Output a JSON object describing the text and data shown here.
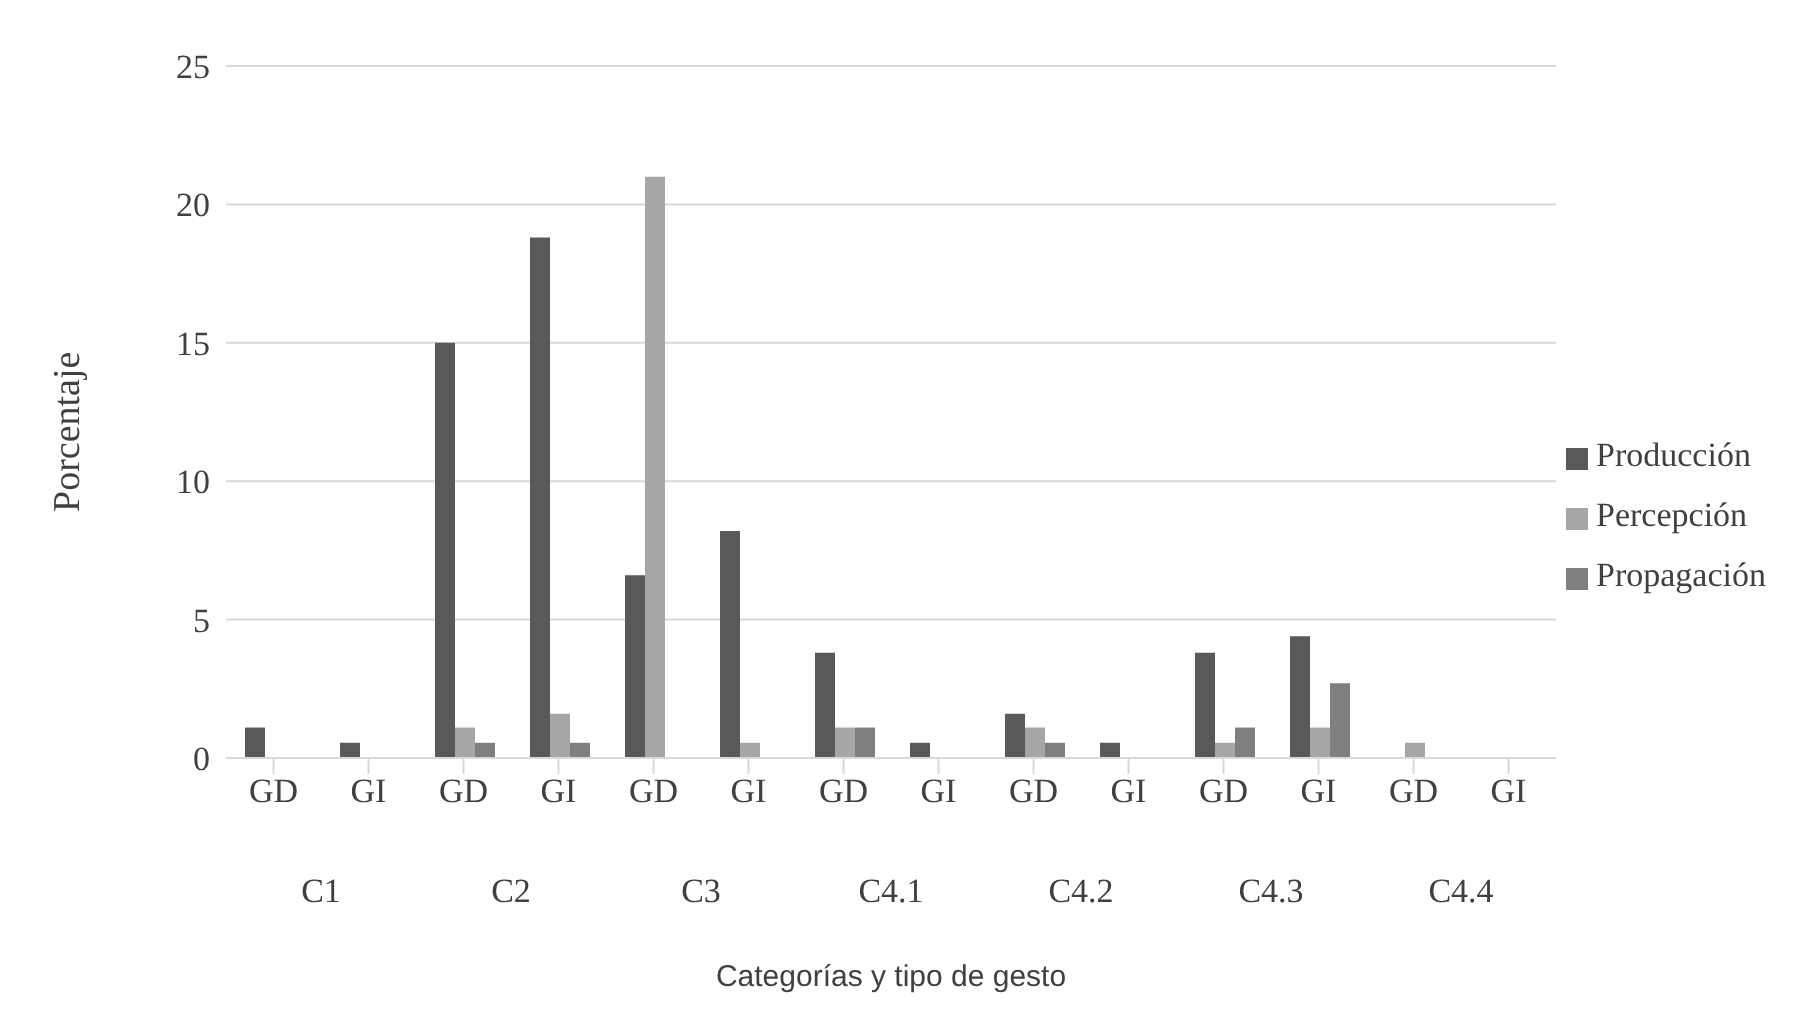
{
  "chart_data": {
    "type": "bar",
    "xlabel": "Categorías y tipo de gesto",
    "ylabel": "Porcentaje",
    "categories": [
      "GD",
      "GI",
      "GD",
      "GI",
      "GD",
      "GI",
      "GD",
      "GI",
      "GD",
      "GI",
      "GD",
      "GI",
      "GD",
      "GI"
    ],
    "annotations": [
      "C1",
      "C2",
      "C3",
      "C4.1",
      "C4.2",
      "C4.3",
      "C4.4"
    ],
    "series": [
      {
        "name": "Producción",
        "color": "#595959",
        "values": [
          1.1,
          0.55,
          15,
          18.8,
          6.6,
          8.2,
          3.8,
          0.55,
          1.6,
          0.55,
          3.8,
          4.4,
          0,
          0
        ]
      },
      {
        "name": "Percepción",
        "color": "#a6a6a6",
        "values": [
          0,
          0,
          1.1,
          1.6,
          21,
          0.55,
          1.1,
          0,
          1.1,
          0,
          0.55,
          1.1,
          0.55,
          0
        ]
      },
      {
        "name": "Propagación",
        "color": "#7f7f7f",
        "values": [
          0,
          0,
          0.55,
          0.55,
          0,
          0,
          1.1,
          0,
          0.55,
          0,
          1.1,
          2.7,
          0,
          0
        ]
      }
    ],
    "ylim": [
      0,
      25
    ],
    "yticks": [
      0,
      5,
      10,
      15,
      20,
      25
    ],
    "grid": "y",
    "legend": "right"
  }
}
